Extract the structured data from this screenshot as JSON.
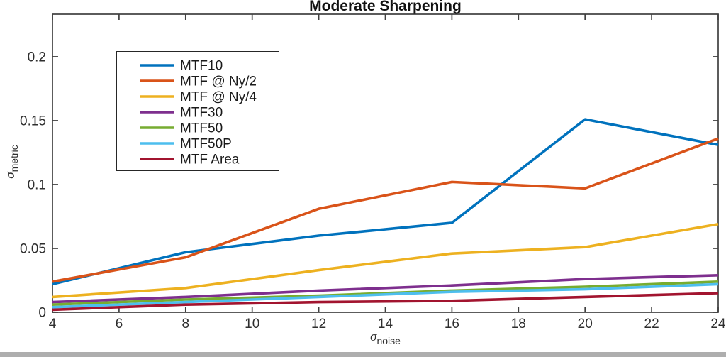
{
  "title": "Moderate Sharpening",
  "x_axis_label": {
    "symbol": "σ",
    "subscript": "noise"
  },
  "y_axis_label": {
    "symbol": "σ",
    "subscript": "metric"
  },
  "chart_data": {
    "type": "line",
    "title": "Moderate Sharpening",
    "xlabel": "sigma_noise",
    "ylabel": "sigma_metric",
    "x": [
      4,
      8,
      12,
      16,
      20,
      24
    ],
    "xticks": [
      4,
      6,
      8,
      10,
      12,
      14,
      16,
      18,
      20,
      22,
      24
    ],
    "yticks": [
      0,
      0.05,
      0.1,
      0.15,
      0.2
    ],
    "xlim": [
      4,
      24
    ],
    "ylim": [
      0,
      0.2333
    ],
    "grid": false,
    "legend_position": "northwest-inside",
    "series": [
      {
        "name": "MTF10",
        "color": "#0072BD",
        "values": [
          0.022,
          0.047,
          0.06,
          0.07,
          0.151,
          0.131
        ]
      },
      {
        "name": "MTF @ Ny/2",
        "color": "#D95319",
        "values": [
          0.024,
          0.043,
          0.081,
          0.102,
          0.097,
          0.136
        ]
      },
      {
        "name": "MTF @ Ny/4",
        "color": "#EDB120",
        "values": [
          0.012,
          0.019,
          0.033,
          0.046,
          0.051,
          0.069
        ]
      },
      {
        "name": "MTF30",
        "color": "#7E2F8E",
        "values": [
          0.008,
          0.012,
          0.017,
          0.021,
          0.026,
          0.029
        ]
      },
      {
        "name": "MTF50",
        "color": "#77AC30",
        "values": [
          0.006,
          0.01,
          0.013,
          0.017,
          0.02,
          0.024
        ]
      },
      {
        "name": "MTF50P",
        "color": "#4DBEEE",
        "values": [
          0.004,
          0.008,
          0.012,
          0.016,
          0.018,
          0.022
        ]
      },
      {
        "name": "MTF Area",
        "color": "#A2142F",
        "values": [
          0.002,
          0.006,
          0.008,
          0.009,
          0.012,
          0.015
        ]
      }
    ]
  },
  "style": {
    "axis_color": "#3f3f3f",
    "tick_label_color": "#2e2e2e",
    "legend_border_color": "#262626",
    "background": "#ffffff",
    "bottom_strip_color": "#aeaeae"
  }
}
